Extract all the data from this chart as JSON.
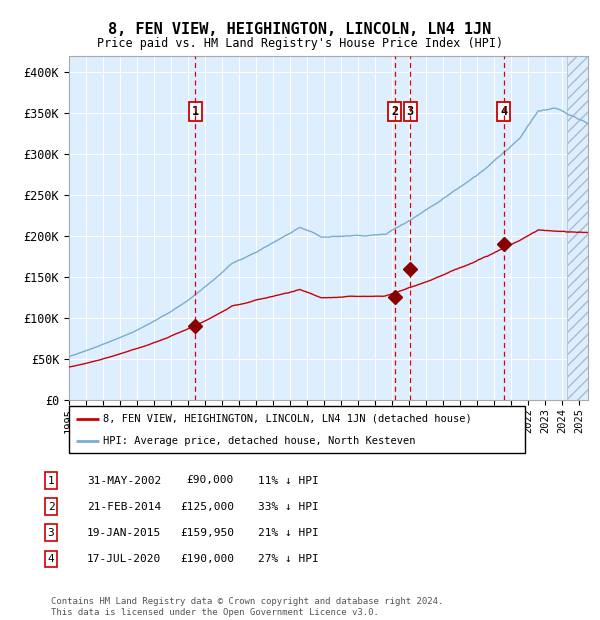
{
  "title": "8, FEN VIEW, HEIGHINGTON, LINCOLN, LN4 1JN",
  "subtitle": "Price paid vs. HM Land Registry's House Price Index (HPI)",
  "xlim": [
    1995.0,
    2025.5
  ],
  "ylim": [
    0,
    420000
  ],
  "yticks": [
    0,
    50000,
    100000,
    150000,
    200000,
    250000,
    300000,
    350000,
    400000
  ],
  "ytick_labels": [
    "£0",
    "£50K",
    "£100K",
    "£150K",
    "£200K",
    "£250K",
    "£300K",
    "£350K",
    "£400K"
  ],
  "xticks": [
    1995,
    1996,
    1997,
    1998,
    1999,
    2000,
    2001,
    2002,
    2003,
    2004,
    2005,
    2006,
    2007,
    2008,
    2009,
    2010,
    2011,
    2012,
    2013,
    2014,
    2015,
    2016,
    2017,
    2018,
    2019,
    2020,
    2021,
    2022,
    2023,
    2024,
    2025
  ],
  "price_paid_color": "#cc0000",
  "hpi_color": "#7aadcc",
  "background_color": "#ddeeff",
  "grid_color": "#ffffff",
  "transaction_dates": [
    2002.415,
    2014.13,
    2015.05,
    2020.54
  ],
  "transaction_prices": [
    90000,
    125000,
    159950,
    190000
  ],
  "transaction_labels": [
    "1",
    "2",
    "3",
    "4"
  ],
  "legend_label_red": "8, FEN VIEW, HEIGHINGTON, LINCOLN, LN4 1JN (detached house)",
  "legend_label_blue": "HPI: Average price, detached house, North Kesteven",
  "table_rows": [
    [
      "1",
      "31-MAY-2002",
      "£90,000",
      "11% ↓ HPI"
    ],
    [
      "2",
      "21-FEB-2014",
      "£125,000",
      "33% ↓ HPI"
    ],
    [
      "3",
      "19-JAN-2015",
      "£159,950",
      "21% ↓ HPI"
    ],
    [
      "4",
      "17-JUL-2020",
      "£190,000",
      "27% ↓ HPI"
    ]
  ],
  "footer": "Contains HM Land Registry data © Crown copyright and database right 2024.\nThis data is licensed under the Open Government Licence v3.0.",
  "hatch_region_start": 2024.25
}
